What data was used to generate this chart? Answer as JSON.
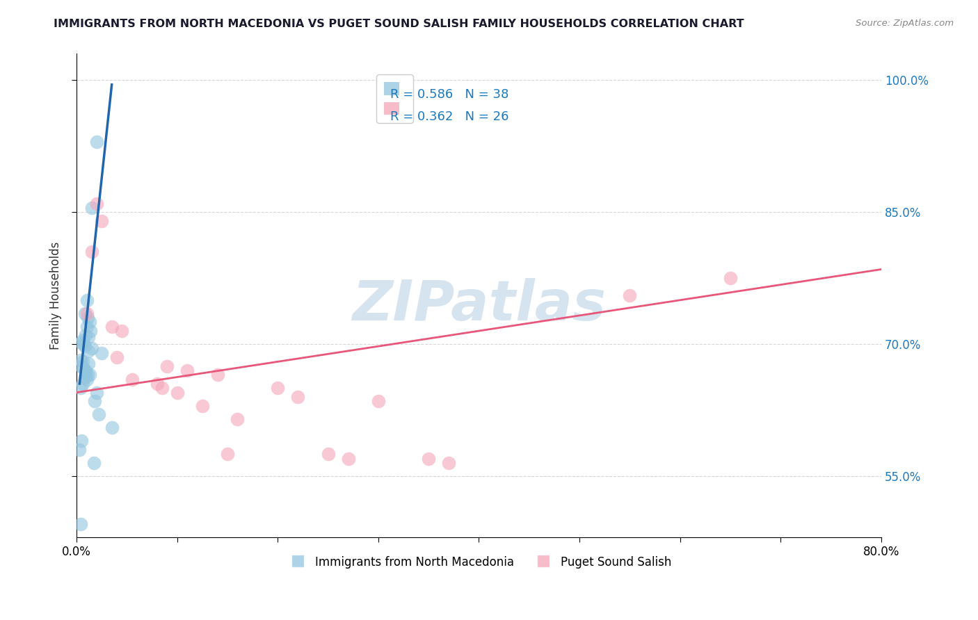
{
  "title": "IMMIGRANTS FROM NORTH MACEDONIA VS PUGET SOUND SALISH FAMILY HOUSEHOLDS CORRELATION CHART",
  "source": "Source: ZipAtlas.com",
  "ylabel": "Family Households",
  "xlim": [
    0.0,
    80.0
  ],
  "ylim": [
    48.0,
    103.0
  ],
  "y_ticks_right": [
    55.0,
    70.0,
    85.0,
    100.0
  ],
  "x_ticks": [
    0.0,
    10.0,
    20.0,
    30.0,
    40.0,
    50.0,
    60.0,
    70.0,
    80.0
  ],
  "legend1_r": "R = 0.586",
  "legend1_n": "N = 38",
  "legend2_r": "R = 0.362",
  "legend2_n": "N = 26",
  "series1_color": "#92c5de",
  "series2_color": "#f4a6b8",
  "line1_color": "#2166ac",
  "line2_color": "#e8567a",
  "watermark": "ZIPatlas",
  "watermark_color": "#d6e4f0",
  "blue_scatter_x": [
    0.3,
    0.4,
    0.4,
    0.5,
    0.5,
    0.5,
    0.6,
    0.6,
    0.6,
    0.7,
    0.7,
    0.8,
    0.8,
    0.8,
    0.9,
    0.9,
    0.9,
    1.0,
    1.0,
    1.0,
    1.1,
    1.1,
    1.2,
    1.2,
    1.2,
    1.3,
    1.3,
    1.4,
    1.5,
    1.5,
    1.7,
    1.8,
    2.0,
    2.0,
    2.2,
    2.5,
    3.5,
    0.4
  ],
  "blue_scatter_y": [
    58.0,
    65.0,
    68.2,
    59.0,
    67.5,
    70.2,
    65.5,
    68.0,
    70.5,
    67.2,
    70.0,
    66.2,
    69.8,
    73.5,
    66.8,
    67.0,
    71.0,
    66.0,
    72.0,
    75.0,
    66.5,
    73.0,
    67.8,
    69.2,
    70.8,
    66.5,
    72.5,
    71.5,
    69.5,
    85.5,
    56.5,
    63.5,
    64.5,
    93.0,
    62.0,
    69.0,
    60.5,
    49.5
  ],
  "pink_scatter_x": [
    1.0,
    1.5,
    2.0,
    2.5,
    3.5,
    4.0,
    4.5,
    5.5,
    8.0,
    8.5,
    9.0,
    10.0,
    11.0,
    12.5,
    14.0,
    15.0,
    16.0,
    20.0,
    22.0,
    25.0,
    27.0,
    30.0,
    35.0,
    37.0,
    55.0,
    65.0
  ],
  "pink_scatter_y": [
    73.5,
    80.5,
    86.0,
    84.0,
    72.0,
    68.5,
    71.5,
    66.0,
    65.5,
    65.0,
    67.5,
    64.5,
    67.0,
    63.0,
    66.5,
    57.5,
    61.5,
    65.0,
    64.0,
    57.5,
    57.0,
    63.5,
    57.0,
    56.5,
    75.5,
    77.5
  ],
  "blue_line_x": [
    0.3,
    3.5
  ],
  "blue_line_y": [
    65.5,
    99.5
  ],
  "pink_line_x": [
    0.0,
    80.0
  ],
  "pink_line_y": [
    64.5,
    78.5
  ],
  "legend_series1": "Immigrants from North Macedonia",
  "legend_series2": "Puget Sound Salish",
  "r_n_color": "#1a7abf",
  "title_color": "#1a1a2e",
  "source_color": "#888888"
}
